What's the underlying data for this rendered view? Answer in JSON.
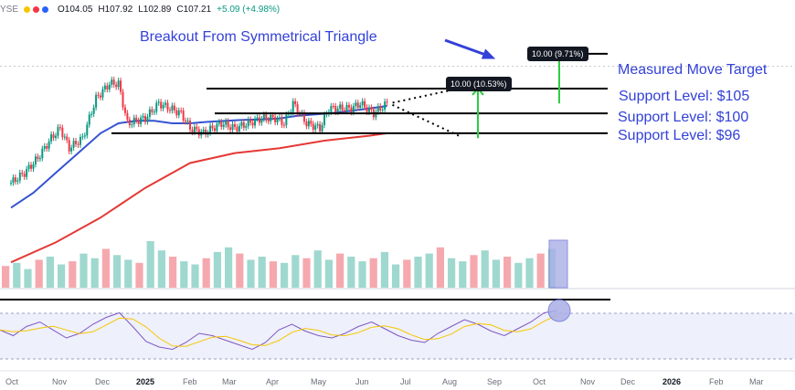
{
  "header": {
    "symbol": "YSE",
    "open": "O104.05",
    "high": "H107.92",
    "low": "L102.89",
    "close": "C107.21",
    "change": "+5.09 (+4.98%)",
    "indicator_colors": [
      "#f7c600",
      "#f23645",
      "#2962ff"
    ]
  },
  "annotations": {
    "breakout": "Breakout From Symmetrical Triangle",
    "measured_move": "Measured Move Target",
    "support_105": "Support Level: $105",
    "support_100": "Support Level: $100",
    "support_96": "Support Level: $96"
  },
  "measure_tags": {
    "first": "10.00 (10.53%)",
    "second": "10.00 (9.71%)"
  },
  "chart_data": {
    "type": "candlestick",
    "price_scale": {
      "min": 75,
      "max": 121
    },
    "x_axis_labels": [
      "Oct",
      "Nov",
      "Dec",
      "2025",
      "Feb",
      "Mar",
      "Apr",
      "May",
      "Jun",
      "Jul",
      "Aug",
      "Sep",
      "Oct",
      "Nov",
      "Dec",
      "2026",
      "Feb",
      "Mar"
    ],
    "price_path": [
      [
        0,
        86
      ],
      [
        0.3,
        88
      ],
      [
        0.6,
        91
      ],
      [
        0.9,
        95
      ],
      [
        1.1,
        97
      ],
      [
        1.3,
        93
      ],
      [
        1.6,
        95
      ],
      [
        1.9,
        103
      ],
      [
        2.2,
        106
      ],
      [
        2.4,
        106
      ],
      [
        2.6,
        98
      ],
      [
        3.0,
        99
      ],
      [
        3.3,
        102
      ],
      [
        3.8,
        100
      ],
      [
        4.0,
        97
      ],
      [
        4.3,
        96
      ],
      [
        4.7,
        98
      ],
      [
        5.0,
        97
      ],
      [
        5.3,
        98
      ],
      [
        5.6,
        99
      ],
      [
        5.9,
        99
      ],
      [
        6.1,
        98
      ],
      [
        6.3,
        102
      ],
      [
        6.6,
        98
      ],
      [
        6.9,
        97
      ],
      [
        7.1,
        101
      ],
      [
        7.4,
        101
      ],
      [
        7.6,
        101
      ],
      [
        7.8,
        102
      ],
      [
        8.1,
        100
      ],
      [
        8.4,
        102
      ]
    ],
    "moving_average_50": [
      [
        0,
        81
      ],
      [
        0.5,
        84
      ],
      [
        1.0,
        88
      ],
      [
        1.5,
        92
      ],
      [
        2.0,
        96
      ],
      [
        2.4,
        98
      ],
      [
        2.8,
        98.5
      ],
      [
        3.2,
        98.5
      ],
      [
        3.6,
        98
      ],
      [
        4.0,
        98
      ],
      [
        4.4,
        98.3
      ],
      [
        4.8,
        98.5
      ],
      [
        5.2,
        98.7
      ],
      [
        5.6,
        98.8
      ],
      [
        6.0,
        99
      ],
      [
        6.4,
        99.5
      ],
      [
        6.8,
        99.8
      ],
      [
        7.2,
        100.1
      ],
      [
        7.6,
        100.5
      ],
      [
        8.0,
        101
      ],
      [
        8.4,
        101.5
      ]
    ],
    "moving_average_200": [
      [
        0,
        70
      ],
      [
        1.0,
        74
      ],
      [
        2.0,
        79
      ],
      [
        3.0,
        85
      ],
      [
        4.0,
        90
      ],
      [
        5.0,
        92
      ],
      [
        6.0,
        93
      ],
      [
        7.0,
        94.5
      ],
      [
        8.0,
        95.5
      ],
      [
        8.4,
        96
      ]
    ],
    "support_levels": [
      105,
      100,
      96
    ],
    "measured_move_target": 112,
    "triangle_apex": 102,
    "volume": [
      14,
      16,
      12,
      18,
      20,
      15,
      17,
      22,
      19,
      25,
      21,
      18,
      16,
      30,
      24,
      20,
      17,
      15,
      19,
      23,
      26,
      22,
      18,
      20,
      17,
      16,
      21,
      19,
      24,
      18,
      22,
      20,
      17,
      19,
      23,
      15,
      18,
      20,
      22,
      26,
      19,
      17,
      21,
      24,
      18,
      20,
      16,
      19,
      22,
      25
    ],
    "rsi": [
      55,
      50,
      58,
      62,
      55,
      48,
      52,
      60,
      66,
      70,
      58,
      45,
      40,
      38,
      44,
      52,
      50,
      46,
      42,
      38,
      44,
      55,
      60,
      54,
      50,
      48,
      52,
      58,
      62,
      56,
      50,
      46,
      44,
      52,
      58,
      64,
      60,
      54,
      50,
      56,
      62,
      70,
      72
    ]
  }
}
